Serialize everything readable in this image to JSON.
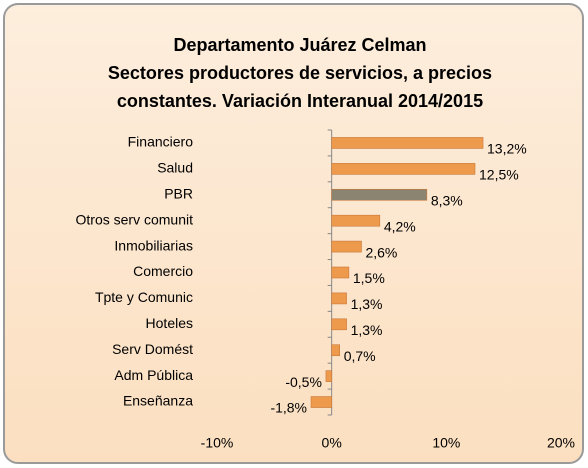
{
  "chart_data": {
    "type": "bar",
    "orientation": "horizontal",
    "title": [
      "Departamento Juárez Celman",
      "Sectores productores de servicios, a precios",
      "constantes. Variación Interanual 2014/2015"
    ],
    "categories": [
      "Financiero",
      "Salud",
      "PBR",
      "Otros serv comunit",
      "Inmobiliarias",
      "Comercio",
      "Tpte y Comunic",
      "Hoteles",
      "Serv Domést",
      "Adm Pública",
      "Enseñanza"
    ],
    "values": [
      13.2,
      12.5,
      8.3,
      4.2,
      2.6,
      1.5,
      1.3,
      1.3,
      0.7,
      -0.5,
      -1.8
    ],
    "value_labels": [
      "13,2%",
      "12,5%",
      "8,3%",
      "4,2%",
      "2,6%",
      "1,5%",
      "1,3%",
      "1,3%",
      "0,7%",
      "-0,5%",
      "-1,8%"
    ],
    "colors": [
      "#ee9a4c",
      "#ee9a4c",
      "#8a8470",
      "#ee9a4c",
      "#ee9a4c",
      "#ee9a4c",
      "#ee9a4c",
      "#ee9a4c",
      "#ee9a4c",
      "#ee9a4c",
      "#ee9a4c"
    ],
    "xlim": [
      -10,
      20
    ],
    "xticks": [
      {
        "value": -10,
        "label": "-10%"
      },
      {
        "value": 0,
        "label": "0%"
      },
      {
        "value": 10,
        "label": "10%"
      },
      {
        "value": 20,
        "label": "20%"
      }
    ]
  }
}
